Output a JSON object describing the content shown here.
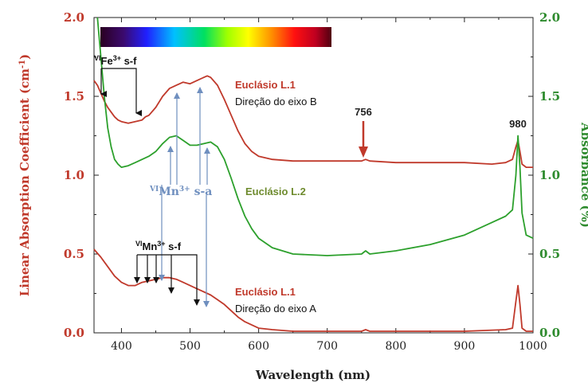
{
  "chart_data": {
    "type": "line",
    "xlabel": "Wavelength (nm)",
    "ylabel_left": "Linear Absorption Coefficient (cm-1)",
    "ylabel_left_main": "Linear Absorption Coefficient (cm",
    "ylabel_left_sup": "-1",
    "ylabel_left_end": ")",
    "ylabel_right": "Absorbance (%)",
    "xlim": [
      360,
      1000
    ],
    "ylim_left": [
      0,
      2
    ],
    "ylim_right": [
      0,
      2
    ],
    "x_ticks": [
      400,
      500,
      600,
      700,
      800,
      900,
      1000
    ],
    "y_ticks_left": [
      "0.0",
      "0.5",
      "1.0",
      "1.5",
      "2.0"
    ],
    "y_ticks_right": [
      "0.0",
      "0.5",
      "1.0",
      "1.5",
      "2.0"
    ],
    "grid": false,
    "series": [
      {
        "name": "Euclásio L.1 — Direção do eixo B",
        "axis": "left",
        "color": "#c0392b",
        "points": [
          [
            360,
            1.6
          ],
          [
            365,
            1.57
          ],
          [
            370,
            1.52
          ],
          [
            375,
            1.47
          ],
          [
            380,
            1.43
          ],
          [
            385,
            1.4
          ],
          [
            390,
            1.37
          ],
          [
            395,
            1.35
          ],
          [
            400,
            1.34
          ],
          [
            410,
            1.33
          ],
          [
            420,
            1.34
          ],
          [
            430,
            1.35
          ],
          [
            435,
            1.37
          ],
          [
            440,
            1.38
          ],
          [
            450,
            1.43
          ],
          [
            460,
            1.5
          ],
          [
            470,
            1.55
          ],
          [
            480,
            1.57
          ],
          [
            490,
            1.59
          ],
          [
            500,
            1.58
          ],
          [
            510,
            1.6
          ],
          [
            520,
            1.62
          ],
          [
            525,
            1.63
          ],
          [
            530,
            1.62
          ],
          [
            540,
            1.57
          ],
          [
            550,
            1.48
          ],
          [
            560,
            1.38
          ],
          [
            570,
            1.28
          ],
          [
            580,
            1.2
          ],
          [
            590,
            1.15
          ],
          [
            600,
            1.12
          ],
          [
            620,
            1.1
          ],
          [
            650,
            1.09
          ],
          [
            700,
            1.09
          ],
          [
            750,
            1.09
          ],
          [
            756,
            1.1
          ],
          [
            762,
            1.09
          ],
          [
            800,
            1.08
          ],
          [
            850,
            1.08
          ],
          [
            900,
            1.08
          ],
          [
            940,
            1.07
          ],
          [
            960,
            1.08
          ],
          [
            970,
            1.1
          ],
          [
            975,
            1.18
          ],
          [
            978,
            1.22
          ],
          [
            981,
            1.15
          ],
          [
            984,
            1.07
          ],
          [
            990,
            1.05
          ],
          [
            1000,
            1.05
          ]
        ]
      },
      {
        "name": "Euclásio L.2",
        "axis": "right",
        "color": "#2ca02c",
        "points": [
          [
            365,
            2.05
          ],
          [
            370,
            1.75
          ],
          [
            375,
            1.5
          ],
          [
            380,
            1.3
          ],
          [
            385,
            1.18
          ],
          [
            390,
            1.1
          ],
          [
            395,
            1.07
          ],
          [
            400,
            1.05
          ],
          [
            410,
            1.06
          ],
          [
            420,
            1.08
          ],
          [
            430,
            1.1
          ],
          [
            440,
            1.12
          ],
          [
            450,
            1.15
          ],
          [
            460,
            1.2
          ],
          [
            470,
            1.24
          ],
          [
            480,
            1.25
          ],
          [
            490,
            1.22
          ],
          [
            500,
            1.19
          ],
          [
            510,
            1.19
          ],
          [
            520,
            1.2
          ],
          [
            530,
            1.21
          ],
          [
            540,
            1.18
          ],
          [
            550,
            1.1
          ],
          [
            560,
            0.98
          ],
          [
            570,
            0.85
          ],
          [
            580,
            0.74
          ],
          [
            590,
            0.66
          ],
          [
            600,
            0.6
          ],
          [
            620,
            0.54
          ],
          [
            650,
            0.5
          ],
          [
            700,
            0.49
          ],
          [
            750,
            0.5
          ],
          [
            756,
            0.52
          ],
          [
            762,
            0.5
          ],
          [
            800,
            0.52
          ],
          [
            850,
            0.56
          ],
          [
            900,
            0.62
          ],
          [
            940,
            0.7
          ],
          [
            960,
            0.74
          ],
          [
            970,
            0.78
          ],
          [
            975,
            1.0
          ],
          [
            978,
            1.25
          ],
          [
            981,
            1.05
          ],
          [
            984,
            0.76
          ],
          [
            990,
            0.62
          ],
          [
            1000,
            0.6
          ]
        ]
      },
      {
        "name": "Euclásio L.1 — Direção do eixo A",
        "axis": "left",
        "color": "#c0392b",
        "points": [
          [
            360,
            0.53
          ],
          [
            370,
            0.48
          ],
          [
            380,
            0.42
          ],
          [
            390,
            0.36
          ],
          [
            400,
            0.32
          ],
          [
            410,
            0.3
          ],
          [
            420,
            0.3
          ],
          [
            430,
            0.32
          ],
          [
            440,
            0.33
          ],
          [
            450,
            0.34
          ],
          [
            460,
            0.35
          ],
          [
            470,
            0.35
          ],
          [
            480,
            0.34
          ],
          [
            490,
            0.32
          ],
          [
            500,
            0.3
          ],
          [
            510,
            0.28
          ],
          [
            520,
            0.26
          ],
          [
            530,
            0.24
          ],
          [
            540,
            0.21
          ],
          [
            550,
            0.18
          ],
          [
            560,
            0.14
          ],
          [
            570,
            0.1
          ],
          [
            580,
            0.07
          ],
          [
            590,
            0.05
          ],
          [
            600,
            0.03
          ],
          [
            620,
            0.02
          ],
          [
            650,
            0.01
          ],
          [
            700,
            0.01
          ],
          [
            750,
            0.01
          ],
          [
            756,
            0.02
          ],
          [
            762,
            0.01
          ],
          [
            800,
            0.01
          ],
          [
            900,
            0.01
          ],
          [
            960,
            0.02
          ],
          [
            970,
            0.03
          ],
          [
            975,
            0.2
          ],
          [
            978,
            0.3
          ],
          [
            981,
            0.18
          ],
          [
            984,
            0.03
          ],
          [
            990,
            0.01
          ],
          [
            1000,
            0.01
          ]
        ]
      }
    ],
    "annotations": [
      {
        "text": "756",
        "x": 756
      },
      {
        "text": "980",
        "x": 980
      }
    ]
  },
  "labels": {
    "fe": {
      "pre": "VI",
      "el": "Fe",
      "sup": "3+",
      "post": " s-f"
    },
    "mn_sa": {
      "pre": "VI",
      "el": "Mn",
      "sup": "3+",
      "post": " s-a"
    },
    "mn_sf": {
      "pre": "VI",
      "el": "Mn",
      "sup": "3+",
      "post": " s-f"
    },
    "l1_top_name": "Euclásio L.1",
    "l1_top_dir": "Direção do eixo B",
    "l2_name": "Euclásio L.2",
    "l1_bot_name": "Euclásio L.1",
    "l1_bot_dir": "Direção do eixo A",
    "peak_756": "756",
    "peak_980": "980"
  },
  "colors": {
    "red": "#c0392b",
    "green": "#2ca02c",
    "blue_arrow": "#6f8fbf"
  }
}
